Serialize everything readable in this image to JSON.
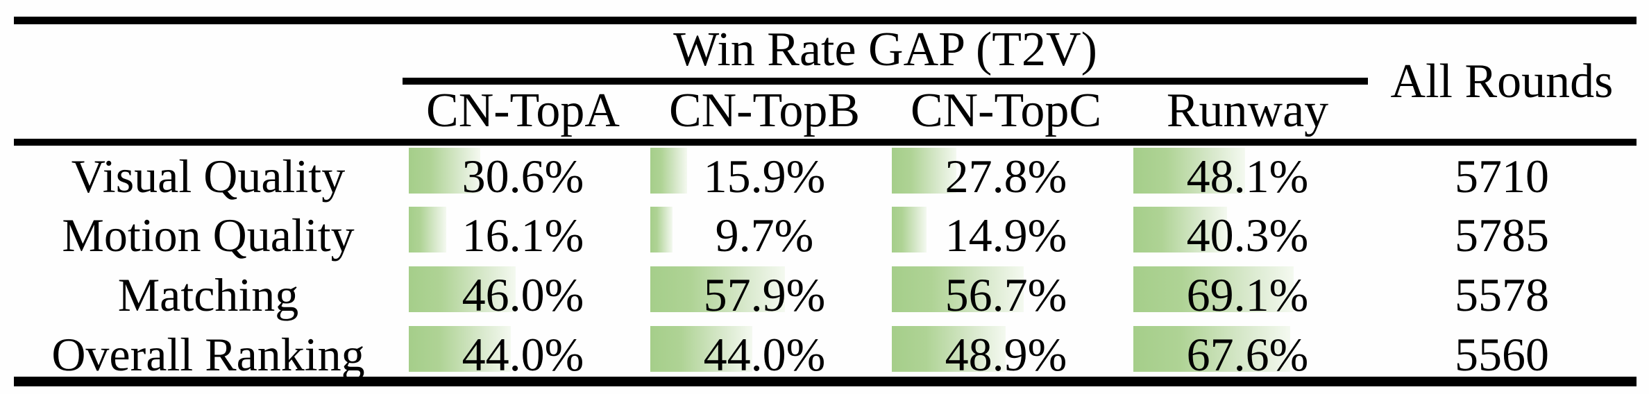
{
  "table": {
    "title": "Win Rate GAP (T2V)",
    "all_rounds_header": "All Rounds",
    "columns": [
      "CN-TopA",
      "CN-TopB",
      "CN-TopC",
      "Runway"
    ],
    "rows": [
      {
        "label": "Visual Quality",
        "cells": [
          "30.6%",
          "15.9%",
          "27.8%",
          "48.1%"
        ],
        "all_rounds": "5710"
      },
      {
        "label": "Motion Quality",
        "cells": [
          "16.1%",
          "9.7%",
          "14.9%",
          "40.3%"
        ],
        "all_rounds": "5785"
      },
      {
        "label": "Matching",
        "cells": [
          "46.0%",
          "57.9%",
          "56.7%",
          "69.1%"
        ],
        "all_rounds": "5578"
      },
      {
        "label": "Overall Ranking",
        "cells": [
          "44.0%",
          "44.0%",
          "48.9%",
          "67.6%"
        ],
        "all_rounds": "5560"
      }
    ],
    "bar_color": "#a5ce8a",
    "bar_fade_color": "#f4f9f0",
    "rule_color": "#000000"
  },
  "chart_data": {
    "type": "table",
    "title": "Win Rate GAP (T2V)",
    "categories": [
      "Visual Quality",
      "Motion Quality",
      "Matching",
      "Overall Ranking"
    ],
    "series": [
      {
        "name": "CN-TopA",
        "values": [
          30.6,
          16.1,
          46.0,
          44.0
        ]
      },
      {
        "name": "CN-TopB",
        "values": [
          15.9,
          9.7,
          57.9,
          44.0
        ]
      },
      {
        "name": "CN-TopC",
        "values": [
          27.8,
          14.9,
          56.7,
          48.9
        ]
      },
      {
        "name": "Runway",
        "values": [
          48.1,
          40.3,
          69.1,
          67.6
        ]
      },
      {
        "name": "All Rounds",
        "values": [
          5710,
          5785,
          5578,
          5560
        ]
      }
    ],
    "unit": "%",
    "note": "green gradient data bars proportional to percent, max scale 100%"
  }
}
